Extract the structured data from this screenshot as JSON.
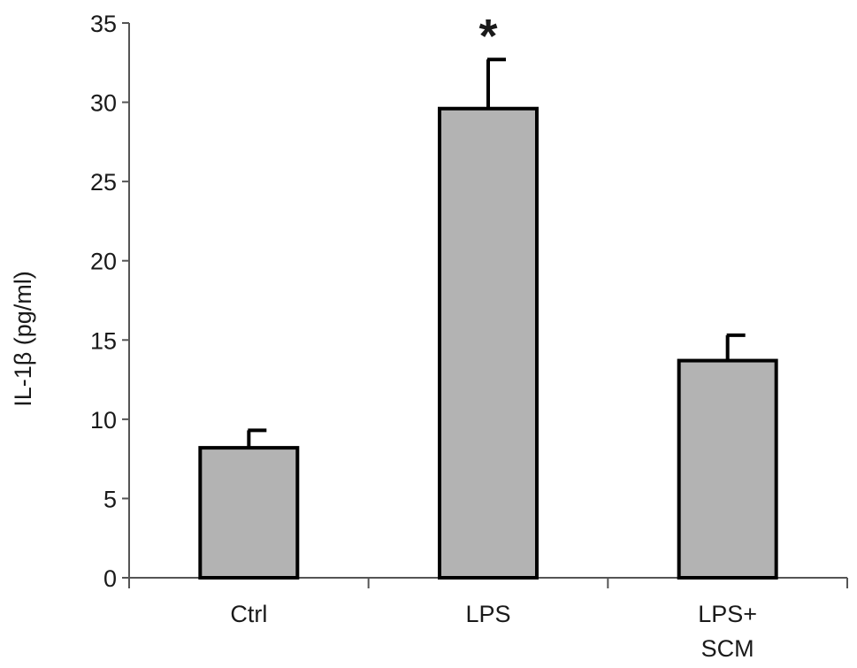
{
  "chart_data": {
    "type": "bar",
    "title": "",
    "xlabel": "",
    "ylabel": "IL-1β (pg/ml)",
    "ylim": [
      0,
      35
    ],
    "yticks": [
      0,
      5,
      10,
      15,
      20,
      25,
      30,
      35
    ],
    "categories": [
      [
        "Ctrl"
      ],
      [
        "LPS"
      ],
      [
        "LPS+",
        "SCM"
      ]
    ],
    "values": [
      8.2,
      29.6,
      13.7
    ],
    "errors": [
      1.1,
      3.1,
      1.6
    ],
    "annotations": [
      "",
      "*",
      ""
    ],
    "grid": false,
    "legend": "none",
    "colors": {
      "bar_fill": "#b3b3b3",
      "bar_stroke": "#000000",
      "axis": "#555555"
    }
  }
}
